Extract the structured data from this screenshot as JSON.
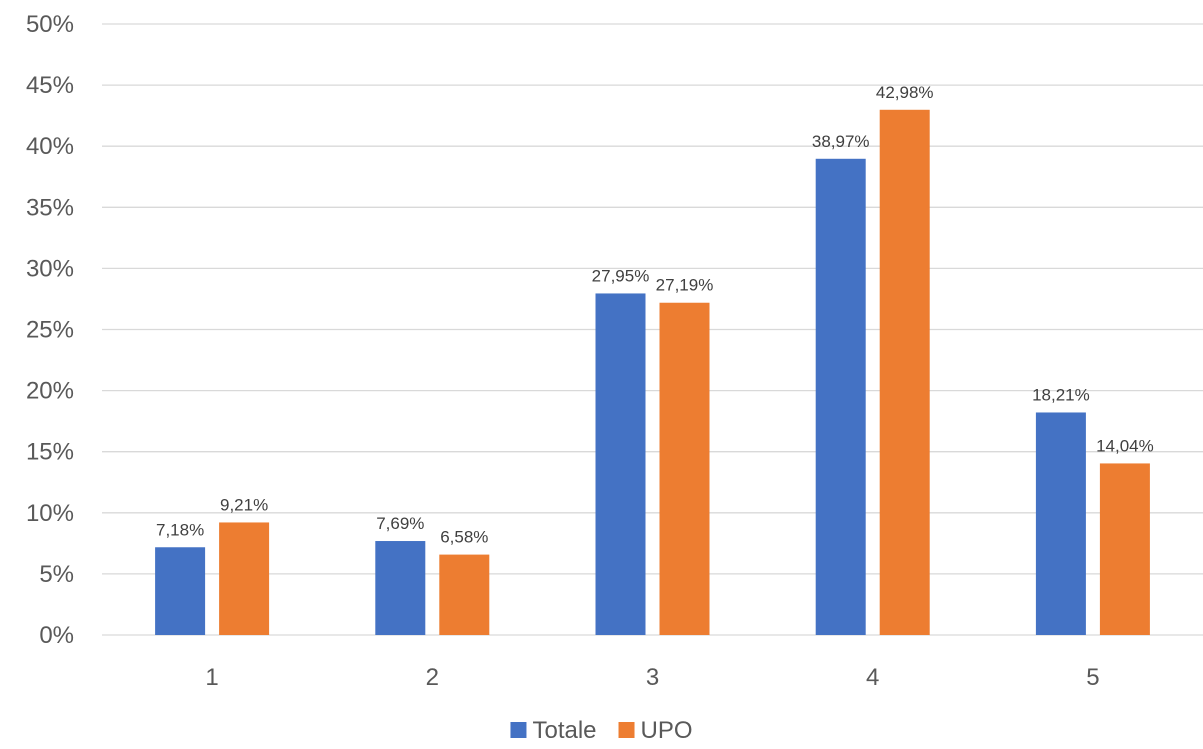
{
  "chart_data": {
    "type": "bar",
    "categories": [
      "1",
      "2",
      "3",
      "4",
      "5"
    ],
    "series": [
      {
        "name": "Totale",
        "color": "#4472c4",
        "values": [
          7.18,
          7.69,
          27.95,
          38.97,
          18.21
        ],
        "labels": [
          "7,18%",
          "7,69%",
          "27,95%",
          "38,97%",
          "18,21%"
        ]
      },
      {
        "name": "UPO",
        "color": "#ed7d31",
        "values": [
          9.21,
          6.58,
          27.19,
          42.98,
          14.04
        ],
        "labels": [
          "9,21%",
          "6,58%",
          "27,19%",
          "42,98%",
          "14,04%"
        ]
      }
    ],
    "ylim": [
      0,
      50
    ],
    "yticks": [
      "0%",
      "5%",
      "10%",
      "15%",
      "20%",
      "25%",
      "30%",
      "35%",
      "40%",
      "45%",
      "50%"
    ],
    "title": "",
    "xlabel": "",
    "ylabel": "",
    "grid": true,
    "legend_position": "bottom"
  }
}
